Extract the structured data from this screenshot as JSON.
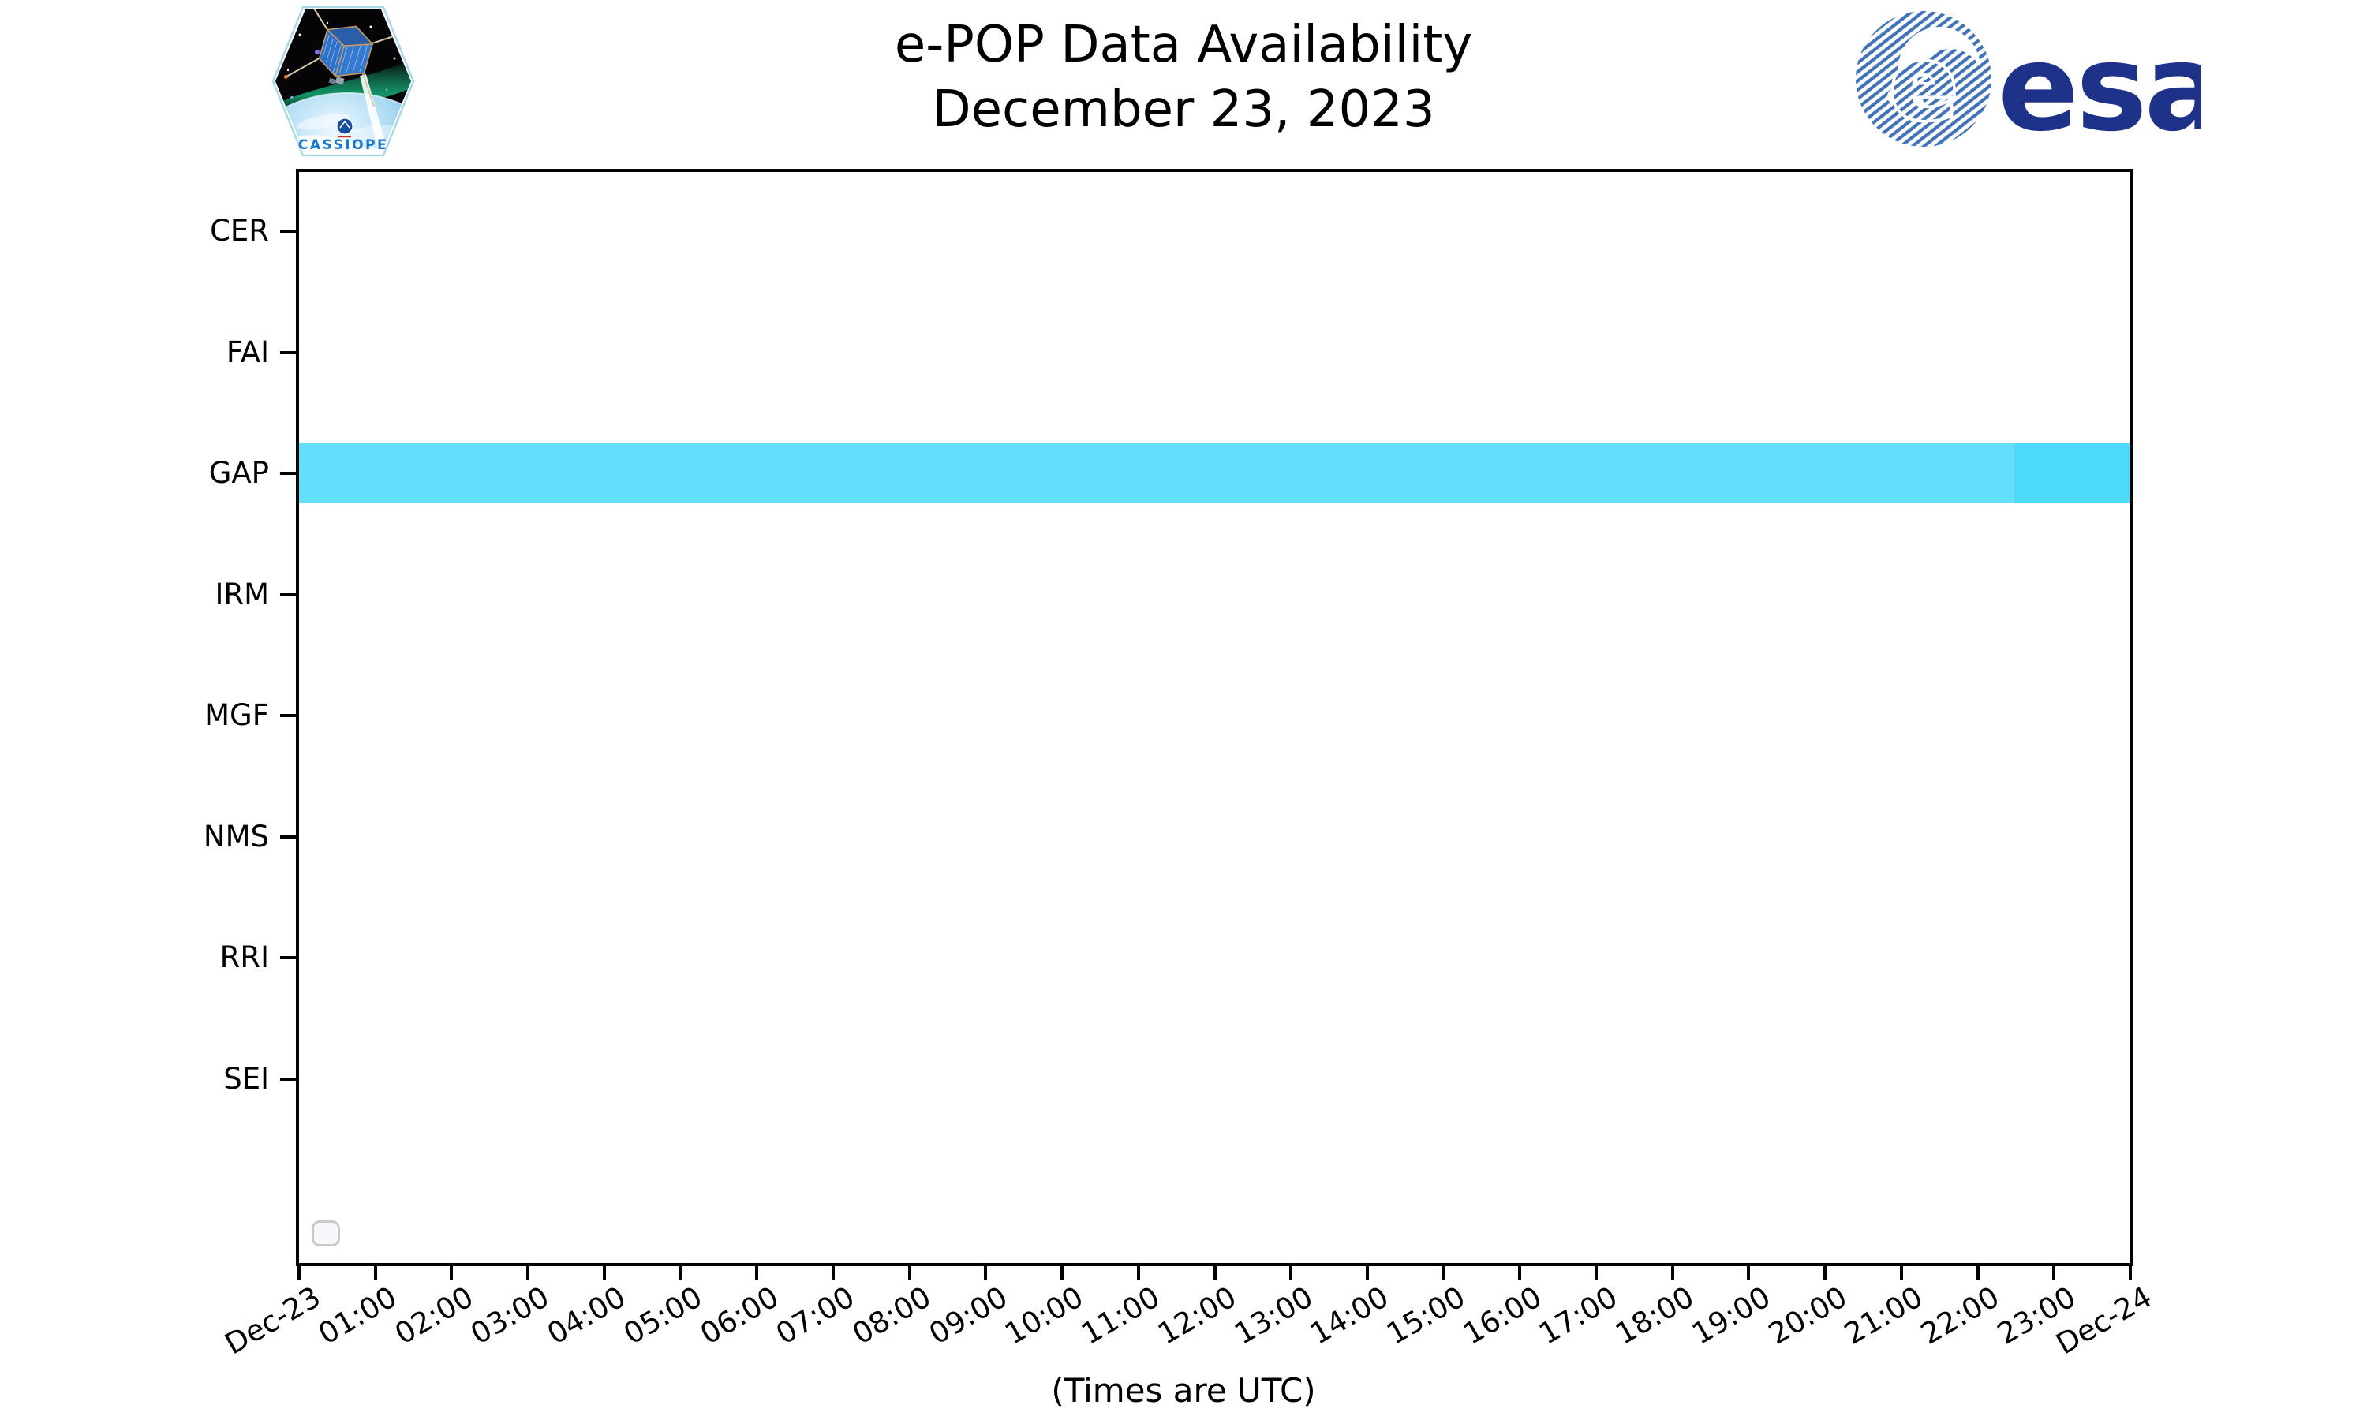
{
  "header": {
    "title_line1": "e-POP Data Availability",
    "title_line2": "December 23, 2023",
    "cassiope_badge": {
      "label": "CASSIOPE"
    },
    "esa_logo": {
      "label": "esa"
    }
  },
  "chart_data": {
    "type": "timeline",
    "title": "e-POP Data Availability",
    "subtitle": "December 23, 2023",
    "y_categories": [
      "CER",
      "FAI",
      "GAP",
      "IRM",
      "MGF",
      "NMS",
      "RRI",
      "SEI"
    ],
    "x_tick_labels": [
      "Dec-23",
      "01:00",
      "02:00",
      "03:00",
      "04:00",
      "05:00",
      "06:00",
      "07:00",
      "08:00",
      "09:00",
      "10:00",
      "11:00",
      "12:00",
      "13:00",
      "14:00",
      "15:00",
      "16:00",
      "17:00",
      "18:00",
      "19:00",
      "20:00",
      "21:00",
      "22:00",
      "23:00",
      "Dec-24"
    ],
    "x_range_hours": [
      0,
      24
    ],
    "grid": false,
    "caption": "(Times are UTC)",
    "legend": {
      "visible": true,
      "entries": []
    },
    "series": [
      {
        "category": "GAP",
        "start_hour": 0,
        "end_hour": 22.48,
        "color": "#63dffb"
      },
      {
        "category": "GAP",
        "start_hour": 22.48,
        "end_hour": 24,
        "color": "#4dd9fa"
      }
    ]
  },
  "colors": {
    "axis": "#000000",
    "bar_light": "#63dffb",
    "bar_deep": "#4dd9fa",
    "esa_text_blue": "#1f3289",
    "esa_stripe_blue": "#4272b8",
    "cassiope_text_blue": "#1878d2",
    "legend_border": "#c9c9c9"
  }
}
